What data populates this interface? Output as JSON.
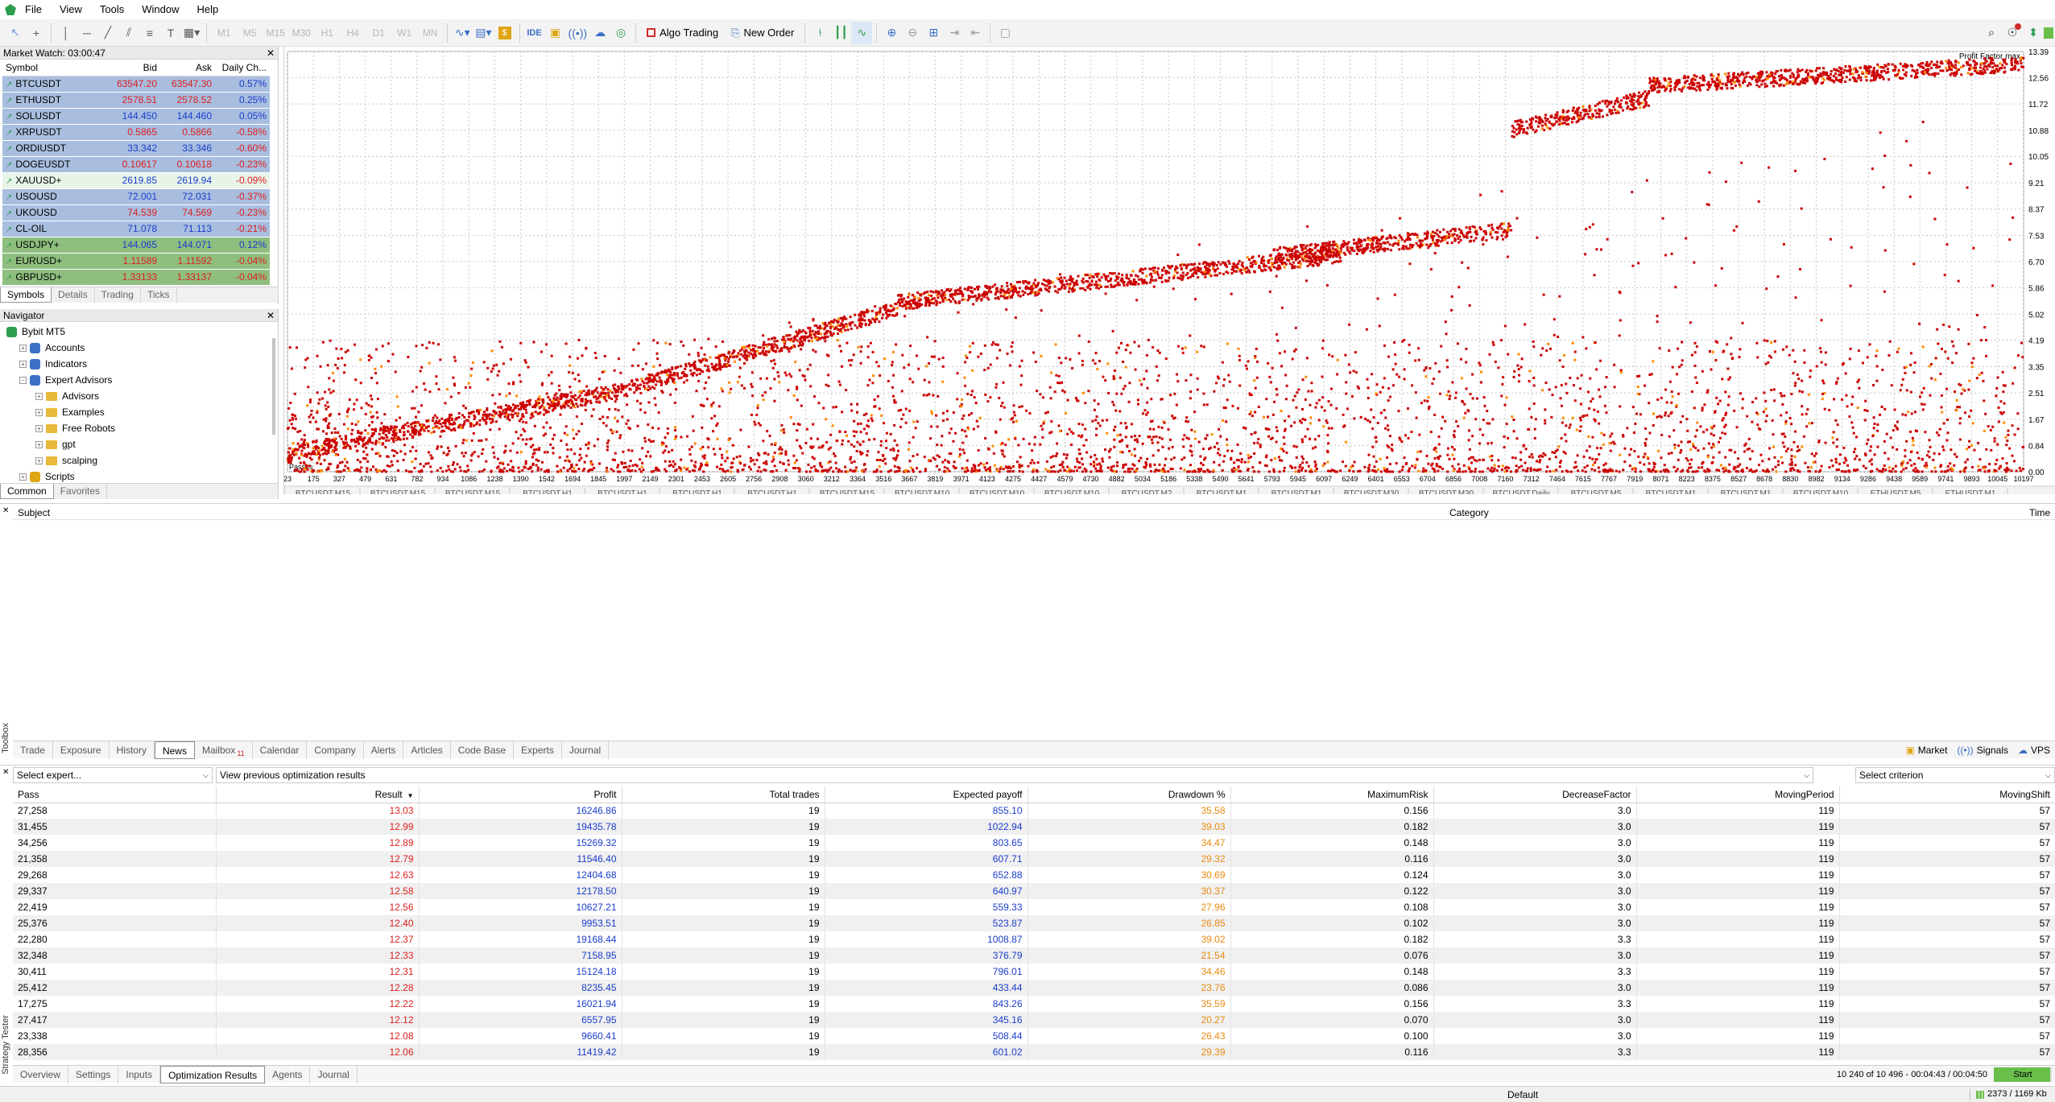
{
  "menu": [
    "File",
    "View",
    "Tools",
    "Window",
    "Help"
  ],
  "toolbar": {
    "timeframes": [
      "M1",
      "M5",
      "M15",
      "M30",
      "H1",
      "H4",
      "D1",
      "W1",
      "MN"
    ],
    "algo_trading": "Algo Trading",
    "new_order": "New Order",
    "ide": "IDE"
  },
  "market_watch": {
    "title": "Market Watch: 03:00:47",
    "columns": [
      "Symbol",
      "Bid",
      "Ask",
      "Daily Ch..."
    ],
    "rows": [
      {
        "symbol": "BTCUSDT",
        "bid": "63547.20",
        "ask": "63547.30",
        "change": "0.57%",
        "bg": "#a9bedf",
        "bidc": "red",
        "chc": "blue"
      },
      {
        "symbol": "ETHUSDT",
        "bid": "2578.51",
        "ask": "2578.52",
        "change": "0.25%",
        "bg": "#a9bedf",
        "bidc": "red",
        "chc": "blue"
      },
      {
        "symbol": "SOLUSDT",
        "bid": "144.450",
        "ask": "144.460",
        "change": "0.05%",
        "bg": "#a9bedf",
        "bidc": "blue",
        "chc": "blue"
      },
      {
        "symbol": "XRPUSDT",
        "bid": "0.5865",
        "ask": "0.5866",
        "change": "-0.58%",
        "bg": "#a9bedf",
        "bidc": "red",
        "chc": "red"
      },
      {
        "symbol": "ORDIUSDT",
        "bid": "33.342",
        "ask": "33.346",
        "change": "-0.60%",
        "bg": "#a9bedf",
        "bidc": "blue",
        "chc": "red"
      },
      {
        "symbol": "DOGEUSDT",
        "bid": "0.10617",
        "ask": "0.10618",
        "change": "-0.23%",
        "bg": "#a9bedf",
        "bidc": "red",
        "chc": "red"
      },
      {
        "symbol": "XAUUSD+",
        "bid": "2619.85",
        "ask": "2619.94",
        "change": "-0.09%",
        "bg": "#e8f4e8",
        "bidc": "blue",
        "chc": "red"
      },
      {
        "symbol": "USOUSD",
        "bid": "72.001",
        "ask": "72.031",
        "change": "-0.37%",
        "bg": "#a9bedf",
        "bidc": "blue",
        "chc": "red"
      },
      {
        "symbol": "UKOUSD",
        "bid": "74.539",
        "ask": "74.569",
        "change": "-0.23%",
        "bg": "#a9bedf",
        "bidc": "red",
        "chc": "red"
      },
      {
        "symbol": "CL-OIL",
        "bid": "71.078",
        "ask": "71.113",
        "change": "-0.21%",
        "bg": "#a9bedf",
        "bidc": "blue",
        "chc": "red"
      },
      {
        "symbol": "USDJPY+",
        "bid": "144.065",
        "ask": "144.071",
        "change": "0.12%",
        "bg": "#8fbf7f",
        "bidc": "blue",
        "chc": "blue"
      },
      {
        "symbol": "EURUSD+",
        "bid": "1.11589",
        "ask": "1.11592",
        "change": "-0.04%",
        "bg": "#8fbf7f",
        "bidc": "red",
        "chc": "red"
      },
      {
        "symbol": "GBPUSD+",
        "bid": "1.33133",
        "ask": "1.33137",
        "change": "-0.04%",
        "bg": "#8fbf7f",
        "bidc": "red",
        "chc": "red"
      }
    ],
    "tabs": [
      "Symbols",
      "Details",
      "Trading",
      "Ticks"
    ]
  },
  "navigator": {
    "title": "Navigator",
    "items": [
      {
        "label": "Bybit MT5",
        "level": 0,
        "icon": "platform-icon"
      },
      {
        "label": "Accounts",
        "level": 1,
        "icon": "accounts-icon"
      },
      {
        "label": "Indicators",
        "level": 1,
        "icon": "indicators-icon"
      },
      {
        "label": "Expert Advisors",
        "level": 1,
        "icon": "experts-icon"
      },
      {
        "label": "Advisors",
        "level": 2,
        "icon": "folder-icon"
      },
      {
        "label": "Examples",
        "level": 2,
        "icon": "folder-icon"
      },
      {
        "label": "Free Robots",
        "level": 2,
        "icon": "folder-icon"
      },
      {
        "label": "gpt",
        "level": 2,
        "icon": "folder-icon"
      },
      {
        "label": "scalping",
        "level": 2,
        "icon": "folder-icon"
      },
      {
        "label": "Scripts",
        "level": 1,
        "icon": "scripts-icon"
      }
    ],
    "tabs": [
      "Common",
      "Favorites"
    ]
  },
  "chart_data": {
    "type": "scatter",
    "title": "Profit Factor max",
    "xlabel": "Passes",
    "ylabel": "",
    "y_ticks": [
      "13.39",
      "12.56",
      "11.72",
      "10.88",
      "10.05",
      "9.21",
      "8.37",
      "7.53",
      "6.70",
      "5.86",
      "5.02",
      "4.19",
      "3.35",
      "2.51",
      "1.67",
      "0.84",
      "0.00"
    ],
    "x_ticks": [
      "23",
      "175",
      "327",
      "479",
      "631",
      "782",
      "934",
      "1086",
      "1238",
      "1390",
      "1542",
      "1694",
      "1845",
      "1997",
      "2149",
      "2301",
      "2453",
      "2605",
      "2756",
      "2908",
      "3060",
      "3212",
      "3364",
      "3516",
      "3667",
      "3819",
      "3971",
      "4123",
      "4275",
      "4427",
      "4579",
      "4730",
      "4882",
      "5034",
      "5186",
      "5338",
      "5490",
      "5641",
      "5793",
      "5945",
      "6097",
      "6249",
      "6401",
      "6553",
      "6704",
      "6856",
      "7008",
      "7160",
      "7312",
      "7464",
      "7615",
      "7767",
      "7919",
      "8071",
      "8223",
      "8375",
      "8527",
      "8678",
      "8830",
      "8982",
      "9134",
      "9286",
      "9438",
      "9589",
      "9741",
      "9893",
      "10045",
      "10197"
    ],
    "ylim": [
      0,
      13.39
    ],
    "xlim": [
      23,
      10197
    ],
    "grid": true,
    "trend_bands": [
      {
        "x0": 23,
        "x1": 2000,
        "y_start": 0.6,
        "y_end": 2.6
      },
      {
        "x0": 2000,
        "x1": 3600,
        "y_start": 2.6,
        "y_end": 5.2
      },
      {
        "x0": 3600,
        "x1": 6200,
        "y_start": 5.4,
        "y_end": 6.9
      },
      {
        "x0": 5800,
        "x1": 7200,
        "y_start": 6.9,
        "y_end": 7.7
      },
      {
        "x0": 7200,
        "x1": 8000,
        "y_start": 10.9,
        "y_end": 11.9
      },
      {
        "x0": 8000,
        "x1": 10197,
        "y_start": 12.3,
        "y_end": 13.0
      }
    ]
  },
  "chart_symbol_tabs": [
    "BTCUSDT,M15",
    "BTCUSDT,M15",
    "BTCUSDT,M15",
    "BTCUSDT,H1",
    "BTCUSDT,H1",
    "BTCUSDT,H1",
    "BTCUSDT,H1",
    "BTCUSDT,M15",
    "BTCUSDT,M10",
    "BTCUSDT,M10",
    "BTCUSDT,M10",
    "BTCUSDT,M2",
    "BTCUSDT,M1",
    "BTCUSDT,M1",
    "BTCUSDT,M30",
    "BTCUSDT,M30",
    "BTCUSDT,Daily",
    "BTCUSDT,M5",
    "BTCUSDT,M1",
    "BTCUSDT,M1",
    "BTCUSDT,M10",
    "ETHUSDT,M5",
    "ETHUSDT,M1"
  ],
  "toolbox": {
    "columns": [
      "Subject",
      "Category",
      "Time"
    ],
    "label": "Toolbox",
    "tabs": [
      "Trade",
      "Exposure",
      "History",
      "News",
      "Mailbox",
      "Calendar",
      "Company",
      "Alerts",
      "Articles",
      "Code Base",
      "Experts",
      "Journal"
    ],
    "mailbox_count": "11",
    "active_tab": "News",
    "right_items": [
      "Market",
      "Signals",
      "VPS"
    ]
  },
  "tester": {
    "label": "Strategy Tester",
    "expert_select": "Select expert...",
    "view_select": "View previous optimization results",
    "criterion_select": "Select criterion",
    "columns": [
      "Pass",
      "Result",
      "Profit",
      "Total trades",
      "Expected payoff",
      "Drawdown %",
      "MaximumRisk",
      "DecreaseFactor",
      "MovingPeriod",
      "MovingShift"
    ],
    "rows": [
      [
        "27,258",
        "13.03",
        "16246.86",
        "19",
        "855.10",
        "35.58",
        "0.156",
        "3.0",
        "119",
        "57"
      ],
      [
        "31,455",
        "12.99",
        "19435.78",
        "19",
        "1022.94",
        "39.03",
        "0.182",
        "3.0",
        "119",
        "57"
      ],
      [
        "34,256",
        "12.89",
        "15269.32",
        "19",
        "803.65",
        "34.47",
        "0.148",
        "3.0",
        "119",
        "57"
      ],
      [
        "21,358",
        "12.79",
        "11546.40",
        "19",
        "607.71",
        "29.32",
        "0.116",
        "3.0",
        "119",
        "57"
      ],
      [
        "29,268",
        "12.63",
        "12404.68",
        "19",
        "652.88",
        "30.69",
        "0.124",
        "3.0",
        "119",
        "57"
      ],
      [
        "29,337",
        "12.58",
        "12178.50",
        "19",
        "640.97",
        "30.37",
        "0.122",
        "3.0",
        "119",
        "57"
      ],
      [
        "22,419",
        "12.56",
        "10627.21",
        "19",
        "559.33",
        "27.96",
        "0.108",
        "3.0",
        "119",
        "57"
      ],
      [
        "25,376",
        "12.40",
        "9953.51",
        "19",
        "523.87",
        "26.85",
        "0.102",
        "3.0",
        "119",
        "57"
      ],
      [
        "22,280",
        "12.37",
        "19168.44",
        "19",
        "1008.87",
        "39.02",
        "0.182",
        "3.3",
        "119",
        "57"
      ],
      [
        "32,348",
        "12.33",
        "7158.95",
        "19",
        "376.79",
        "21.54",
        "0.076",
        "3.0",
        "119",
        "57"
      ],
      [
        "30,411",
        "12.31",
        "15124.18",
        "19",
        "796.01",
        "34.46",
        "0.148",
        "3.3",
        "119",
        "57"
      ],
      [
        "25,412",
        "12.28",
        "8235.45",
        "19",
        "433.44",
        "23.76",
        "0.086",
        "3.0",
        "119",
        "57"
      ],
      [
        "17,275",
        "12.22",
        "16021.94",
        "19",
        "843.26",
        "35.59",
        "0.156",
        "3.3",
        "119",
        "57"
      ],
      [
        "27,417",
        "12.12",
        "6557.95",
        "19",
        "345.16",
        "20.27",
        "0.070",
        "3.0",
        "119",
        "57"
      ],
      [
        "23,338",
        "12.08",
        "9660.41",
        "19",
        "508.44",
        "26.43",
        "0.100",
        "3.0",
        "119",
        "57"
      ],
      [
        "28,356",
        "12.06",
        "11419.42",
        "19",
        "601.02",
        "29.39",
        "0.116",
        "3.3",
        "119",
        "57"
      ]
    ],
    "tabs": [
      "Overview",
      "Settings",
      "Inputs",
      "Optimization Results",
      "Agents",
      "Journal"
    ],
    "active_tab": "Optimization Results",
    "progress": "10 240 of 10 496 - 00:04:43 / 00:04:50",
    "progress_fraction": 0.9756,
    "start": "Start"
  },
  "status": {
    "profile": "Default",
    "traffic": "2373 / 1169 Kb"
  },
  "colors": {
    "accent_green": "#6abf4b",
    "scatter_red": "#cc0000",
    "scatter_orange": "#ff8c00"
  }
}
